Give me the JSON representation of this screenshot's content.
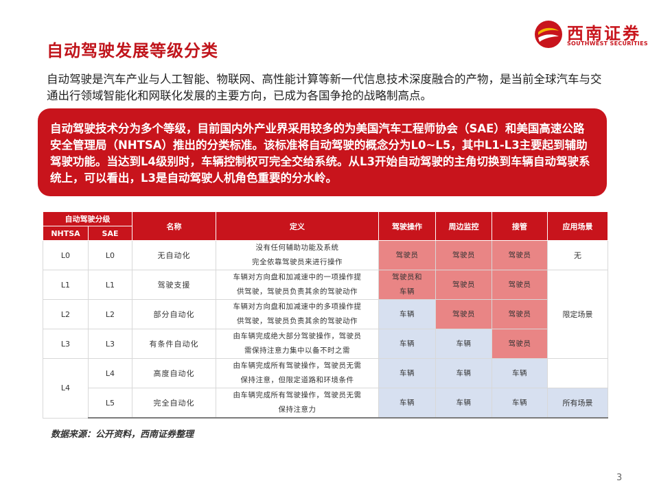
{
  "header": {
    "title": "自动驾驶发展等级分类",
    "logo_cn": "西南证券",
    "logo_en": "SOUTHWEST SECURITIES"
  },
  "intro": "自动驾驶是汽车产业与人工智能、物联网、高性能计算等新一代信息技术深度融合的产物，是当前全球汽车与交通出行领域智能化和网联化发展的主要方向，已成为各国争抢的战略制高点。",
  "callout": "自动驾驶技术分为多个等级，目前国内外产业界采用较多的为美国汽车工程师协会（SAE）和美国高速公路安全管理局（NHTSA）推出的分类标准。该标准将自动驾驶的概念分为L0~L5，其中L1-L3主要起到辅助驾驶功能。当达到L4级别时，车辆控制权可完全交给系统。从L3开始自动驾驶的主角切换到车辆自动驾驶系统上，可以看出，L3是自动驾驶人机角色重要的分水岭。",
  "table": {
    "headers": {
      "group": "自动驾驶分级",
      "nhtsa": "NHTSA",
      "sae": "SAE",
      "name": "名称",
      "definition": "定义",
      "driving": "驾驶操作",
      "monitoring": "周边监控",
      "takeover": "接管",
      "scenario": "应用场景"
    },
    "rows": [
      {
        "nhtsa": "L0",
        "sae": "L0",
        "name": "无自动化",
        "def1": "没有任何辅助功能及系统",
        "def2": "完全依靠驾驶员来进行操作",
        "driving1": "驾驶员",
        "driving2": "",
        "monitoring": "驾驶员",
        "takeover": "驾驶员",
        "scenario": "无"
      },
      {
        "nhtsa": "L1",
        "sae": "L1",
        "name": "驾驶支援",
        "def1": "车辆对方向盘和加减速中的一项操作提",
        "def2": "供驾驶，驾驶员负责其余的驾驶动作",
        "driving1": "驾驶员和",
        "driving2": "车辆",
        "monitoring": "驾驶员",
        "takeover": "驾驶员"
      },
      {
        "nhtsa": "L2",
        "sae": "L2",
        "name": "部分自动化",
        "def1": "车辆对方向盘和加减速中的多项操作提",
        "def2": "供驾驶，驾驶员负责其余的驾驶动作",
        "driving1": "车辆",
        "driving2": "",
        "monitoring": "驾驶员",
        "takeover": "驾驶员",
        "scenario": "限定场景"
      },
      {
        "nhtsa": "L3",
        "sae": "L3",
        "name": "有条件自动化",
        "def1": "由车辆完成绝大部分驾驶操作，驾驶员",
        "def2": "需保持注意力集中以备不时之需",
        "driving1": "车辆",
        "driving2": "",
        "monitoring": "车辆",
        "takeover": "驾驶员"
      },
      {
        "nhtsa": "L4",
        "sae": "L4",
        "name": "高度自动化",
        "def1": "由车辆完成所有驾驶操作，驾驶员无需",
        "def2": "保持注意，但限定道路和环境条件",
        "driving1": "车辆",
        "driving2": "",
        "monitoring": "车辆",
        "takeover": "车辆"
      },
      {
        "sae": "L5",
        "name": "完全自动化",
        "def1": "由车辆完成所有驾驶操作，驾驶员无需",
        "def2": "保持注意力",
        "driving1": "车辆",
        "driving2": "",
        "monitoring": "车辆",
        "takeover": "车辆",
        "scenario": "所有场景"
      }
    ]
  },
  "source": "数据来源：公开资料，西南证券整理",
  "page_number": "3",
  "colors": {
    "accent": "#c8141c",
    "cell_red": "#e98585",
    "cell_blue": "#d7e0f0"
  }
}
